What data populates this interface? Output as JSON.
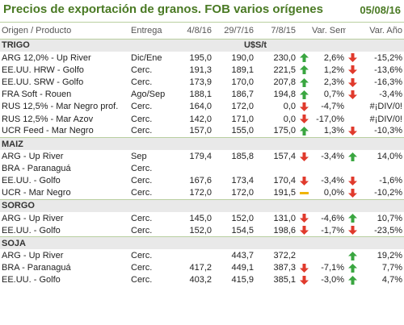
{
  "header": {
    "title": "Precios de exportación de granos. FOB varios orígenes",
    "date": "05/08/16"
  },
  "columns": [
    "Origen / Producto",
    "Entrega",
    "4/8/16",
    "29/7/16",
    "7/8/15",
    "Var. Sem.",
    "Var. Año"
  ],
  "unit": "U$S/t",
  "sections": [
    {
      "name": "TRIGO",
      "rows": [
        {
          "p": "ARG 12,0% - Up River",
          "e": "Dic/Ene",
          "v1": "195,0",
          "v2": "190,0",
          "v3": "230,0",
          "a1": "up",
          "vs": "2,6%",
          "a2": "down",
          "va": "-15,2%"
        },
        {
          "p": "EE.UU. HRW - Golfo",
          "e": "Cerc.",
          "v1": "191,3",
          "v2": "189,1",
          "v3": "221,5",
          "a1": "up",
          "vs": "1,2%",
          "a2": "down",
          "va": "-13,6%"
        },
        {
          "p": "EE.UU. SRW - Golfo",
          "e": "Cerc.",
          "v1": "173,9",
          "v2": "170,0",
          "v3": "207,8",
          "a1": "up",
          "vs": "2,3%",
          "a2": "down",
          "va": "-16,3%"
        },
        {
          "p": "FRA Soft - Rouen",
          "e": "Ago/Sep",
          "v1": "188,1",
          "v2": "186,7",
          "v3": "194,8",
          "a1": "up",
          "vs": "0,7%",
          "a2": "down",
          "va": "-3,4%"
        },
        {
          "p": "RUS 12,5% - Mar Negro prof.",
          "e": "Cerc.",
          "v1": "164,0",
          "v2": "172,0",
          "v3": "0,0",
          "a1": "down",
          "vs": "-4,7%",
          "a2": "",
          "va": "#¡DIV/0!"
        },
        {
          "p": "RUS 12,5% - Mar Azov",
          "e": "Cerc.",
          "v1": "142,0",
          "v2": "171,0",
          "v3": "0,0",
          "a1": "down",
          "vs": "-17,0%",
          "a2": "",
          "va": "#¡DIV/0!"
        },
        {
          "p": "UCR Feed - Mar Negro",
          "e": "Cerc.",
          "v1": "157,0",
          "v2": "155,0",
          "v3": "175,0",
          "a1": "up",
          "vs": "1,3%",
          "a2": "down",
          "va": "-10,3%"
        }
      ]
    },
    {
      "name": "MAIZ",
      "rows": [
        {
          "p": "ARG - Up River",
          "e": "Sep",
          "v1": "179,4",
          "v2": "185,8",
          "v3": "157,4",
          "a1": "down",
          "vs": "-3,4%",
          "a2": "up",
          "va": "14,0%"
        },
        {
          "p": "BRA - Paranaguá",
          "e": "Cerc.",
          "v1": "",
          "v2": "",
          "v3": "",
          "a1": "",
          "vs": "",
          "a2": "",
          "va": ""
        },
        {
          "p": "EE.UU. - Golfo",
          "e": "Cerc.",
          "v1": "167,6",
          "v2": "173,4",
          "v3": "170,4",
          "a1": "down",
          "vs": "-3,4%",
          "a2": "down",
          "va": "-1,6%"
        },
        {
          "p": "UCR - Mar Negro",
          "e": "Cerc.",
          "v1": "172,0",
          "v2": "172,0",
          "v3": "191,5",
          "a1": "flat",
          "vs": "0,0%",
          "a2": "down",
          "va": "-10,2%"
        }
      ]
    },
    {
      "name": "SORGO",
      "rows": [
        {
          "p": "ARG - Up River",
          "e": "Cerc.",
          "v1": "145,0",
          "v2": "152,0",
          "v3": "131,0",
          "a1": "down",
          "vs": "-4,6%",
          "a2": "up",
          "va": "10,7%"
        },
        {
          "p": "EE.UU. - Golfo",
          "e": "Cerc.",
          "v1": "152,0",
          "v2": "154,5",
          "v3": "198,6",
          "a1": "down",
          "vs": "-1,7%",
          "a2": "down",
          "va": "-23,5%"
        }
      ]
    },
    {
      "name": "SOJA",
      "rows": [
        {
          "p": "ARG - Up River",
          "e": "Cerc.",
          "v1": "",
          "v2": "443,7",
          "v3": "372,2",
          "a1": "",
          "vs": "",
          "a2": "up",
          "va": "19,2%"
        },
        {
          "p": "BRA - Paranaguá",
          "e": "Cerc.",
          "v1": "417,2",
          "v2": "449,1",
          "v3": "387,3",
          "a1": "down",
          "vs": "-7,1%",
          "a2": "up",
          "va": "7,7%"
        },
        {
          "p": "EE.UU. - Golfo",
          "e": "Cerc.",
          "v1": "403,2",
          "v2": "415,9",
          "v3": "385,1",
          "a1": "down",
          "vs": "-3,0%",
          "a2": "up",
          "va": "4,7%"
        }
      ]
    }
  ]
}
